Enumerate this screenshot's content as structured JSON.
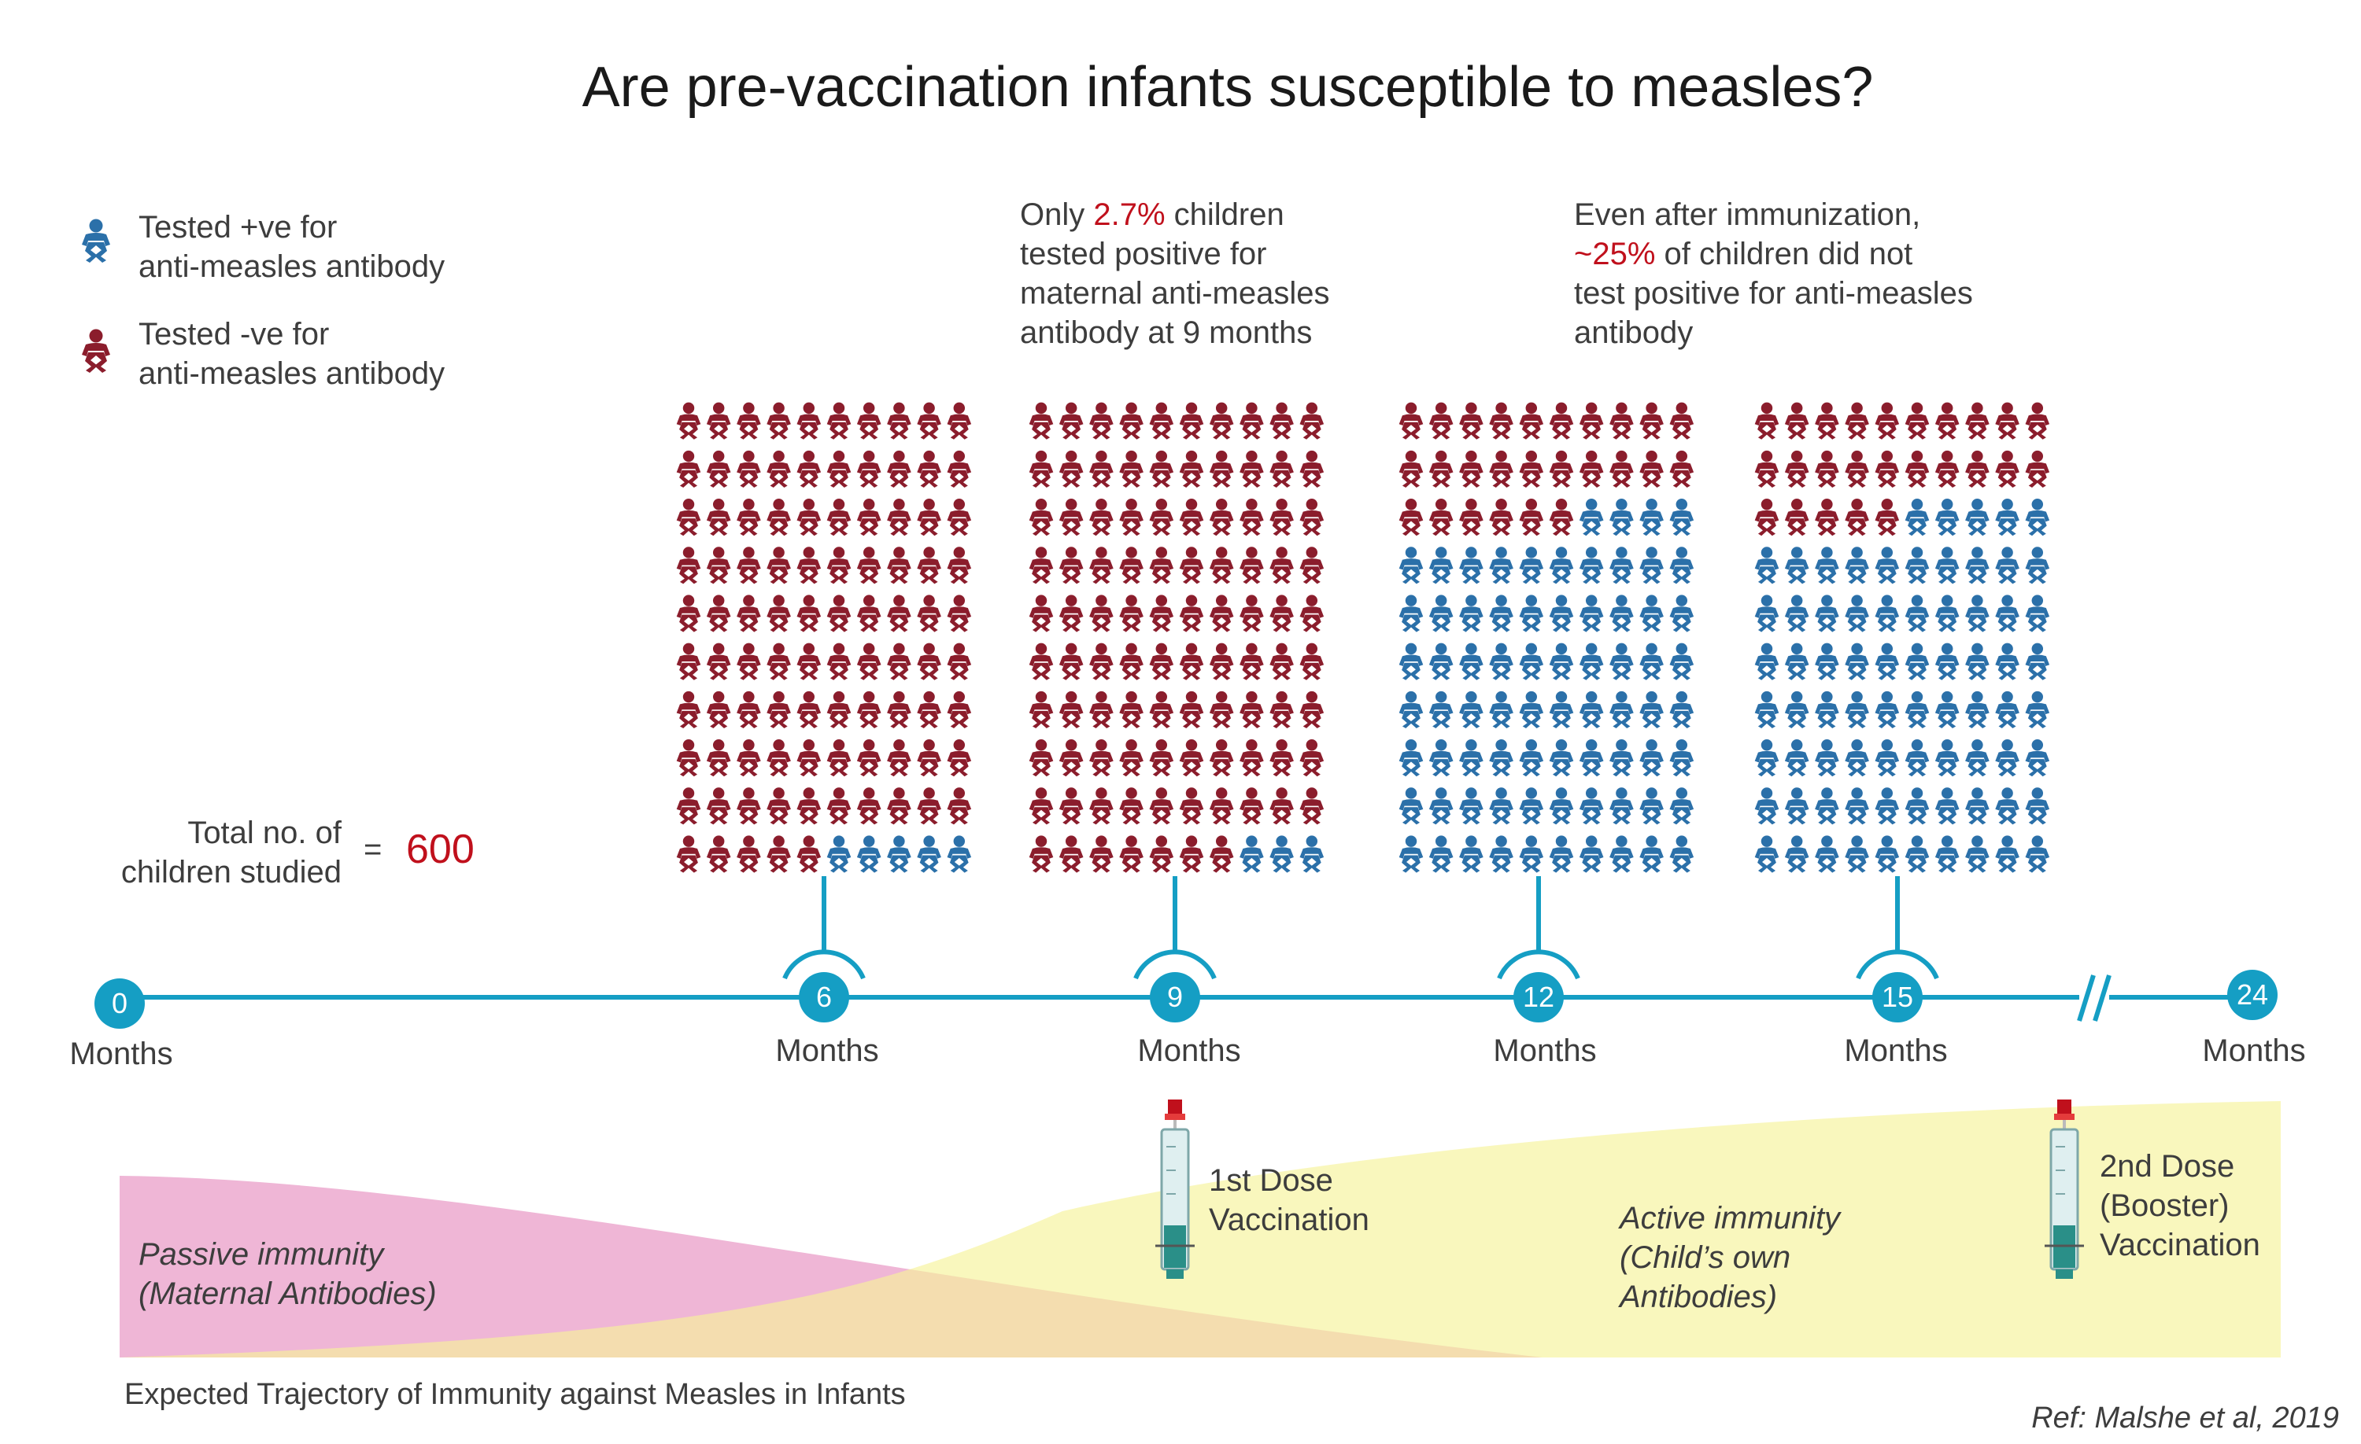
{
  "title": "Are pre-vaccination infants susceptible to measles?",
  "legend": {
    "positive": {
      "line1": "Tested +ve for",
      "line2": "anti-measles antibody",
      "color": "#2b70a9",
      "icon": "baby-icon"
    },
    "negative": {
      "line1": "Tested -ve for",
      "line2": "anti-measles antibody",
      "color": "#8b1d2c",
      "icon": "baby-icon"
    }
  },
  "total": {
    "label_line1": "Total no. of",
    "label_line2": "children studied",
    "equals": "=",
    "value": "600"
  },
  "annotation_9mo": {
    "line1_pre": "Only ",
    "line1_highlight": "2.7%",
    "line1_post": " children",
    "line2": "tested positive for",
    "line3": "maternal anti-measles",
    "line4": "antibody at 9 months"
  },
  "annotation_15mo": {
    "line1": "Even after immunization,",
    "line2_highlight": "~25%",
    "line2_post": " of children did not",
    "line3": "test positive for anti-measles",
    "line4": "antibody"
  },
  "timeline": {
    "unit": "Months",
    "ticks": [
      {
        "value": "0",
        "label": "Months"
      },
      {
        "value": "6",
        "label": "Months"
      },
      {
        "value": "9",
        "label": "Months"
      },
      {
        "value": "12",
        "label": "Months"
      },
      {
        "value": "15",
        "label": "Months"
      },
      {
        "value": "24",
        "label": "Months"
      }
    ],
    "color": "#159ec4"
  },
  "chart_data": {
    "type": "waffle",
    "grid": {
      "rows": 10,
      "cols": 10
    },
    "positive_color": "#2b70a9",
    "negative_color": "#8b1d2c",
    "groups": [
      {
        "month": "6",
        "positive_icons": 5
      },
      {
        "month": "9",
        "positive_icons": 3
      },
      {
        "month": "12",
        "positive_icons": 74
      },
      {
        "month": "15",
        "positive_icons": 75
      }
    ]
  },
  "immunity": {
    "passive": {
      "line1": "Passive immunity",
      "line2": "(Maternal Antibodies)",
      "color": "#efb6d6"
    },
    "active": {
      "line1": "Active immunity",
      "line2": "(Child’s own",
      "line3": "Antibodies)",
      "color": "#f8f7b6"
    }
  },
  "doses": {
    "first": {
      "line1": "1st Dose",
      "line2": "Vaccination",
      "icon": "syringe-icon"
    },
    "second": {
      "line1": "2nd Dose",
      "line2": "(Booster)",
      "line3": "Vaccination",
      "icon": "syringe-icon"
    }
  },
  "caption": "Expected Trajectory of Immunity against Measles in Infants",
  "reference": "Ref: Malshe et al, 2019"
}
